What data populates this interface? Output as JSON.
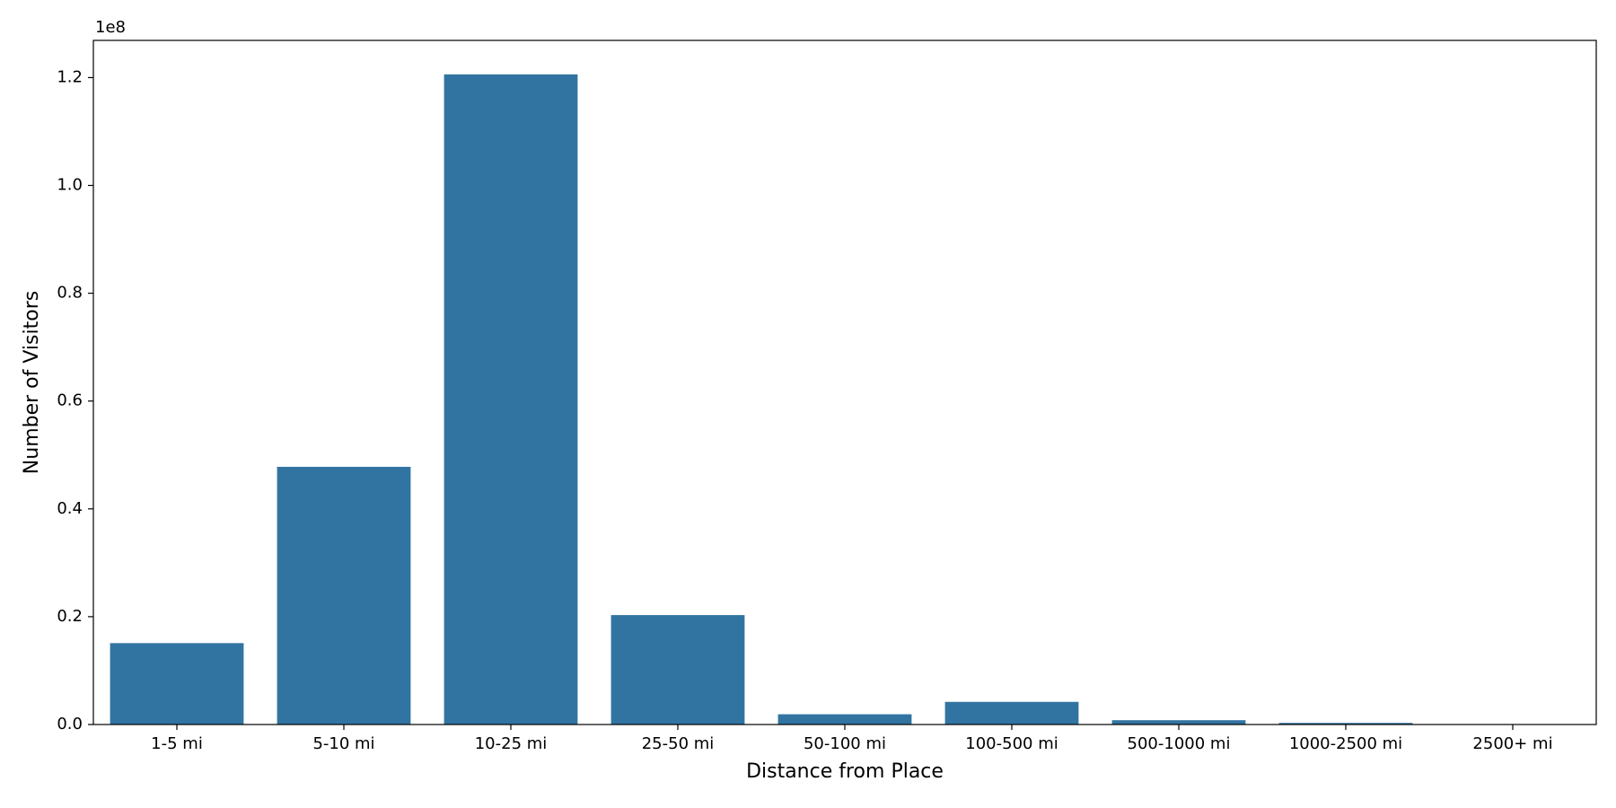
{
  "chart_data": {
    "type": "bar",
    "x_label": "Distance from Place",
    "y_label": "Number of Visitors",
    "y_offset_text": "1e8",
    "categories": [
      "1-5 mi",
      "5-10 mi",
      "10-25 mi",
      "25-50 mi",
      "50-100 mi",
      "100-500 mi",
      "500-1000 mi",
      "1000-2500 mi",
      "2500+ mi"
    ],
    "values": [
      0.151,
      0.478,
      1.206,
      0.203,
      0.019,
      0.042,
      0.008,
      0.003,
      0.0005
    ],
    "color": "#3274a1",
    "ylim": [
      0,
      1.269
    ],
    "yticks": [
      {
        "value": 0,
        "label": "0.0"
      },
      0.2,
      0.4,
      0.6,
      0.8,
      {
        "value": 1,
        "label": "1.0"
      },
      1.2
    ],
    "grid": false
  }
}
